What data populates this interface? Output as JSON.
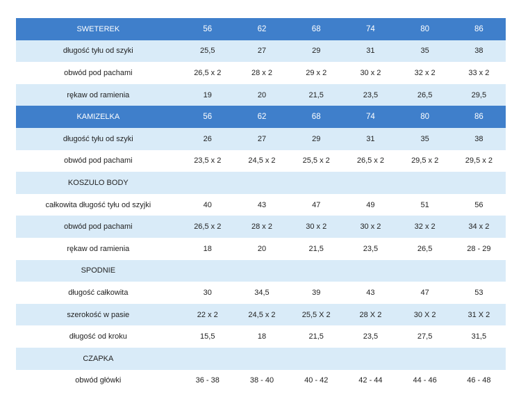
{
  "table": {
    "rows": [
      {
        "kind": "header",
        "label": "SWETEREK",
        "values": [
          "56",
          "62",
          "68",
          "74",
          "80",
          "86"
        ]
      },
      {
        "kind": "light",
        "label": "długość tyłu od szyki",
        "values": [
          "25,5",
          "27",
          "29",
          "31",
          "35",
          "38"
        ]
      },
      {
        "kind": "white",
        "label": "obwód pod pachami",
        "values": [
          "26,5 x 2",
          "28 x 2",
          "29 x 2",
          "30 x 2",
          "32 x 2",
          "33 x 2"
        ]
      },
      {
        "kind": "light",
        "label": "rękaw od ramienia",
        "values": [
          "19",
          "20",
          "21,5",
          "23,5",
          "26,5",
          "29,5"
        ]
      },
      {
        "kind": "header",
        "label": "KAMIZELKA",
        "values": [
          "56",
          "62",
          "68",
          "74",
          "80",
          "86"
        ]
      },
      {
        "kind": "light",
        "label": "długość tyłu od szyki",
        "values": [
          "26",
          "27",
          "29",
          "31",
          "35",
          "38"
        ]
      },
      {
        "kind": "white",
        "label": "obwód pod pachami",
        "values": [
          "23,5 x 2",
          "24,5 x 2",
          "25,5 x 2",
          "26,5 x 2",
          "29,5 x 2",
          "29,5 x 2"
        ]
      },
      {
        "kind": "light",
        "label": "KOSZULO BODY",
        "values": [
          "",
          "",
          "",
          "",
          "",
          ""
        ]
      },
      {
        "kind": "white",
        "label": "całkowita długość tyłu od szyjki",
        "values": [
          "40",
          "43",
          "47",
          "49",
          "51",
          "56"
        ]
      },
      {
        "kind": "light",
        "label": "obwód pod pachami",
        "values": [
          "26,5 x 2",
          "28 x 2",
          "30 x 2",
          "30 x 2",
          "32 x 2",
          "34 x 2"
        ]
      },
      {
        "kind": "white",
        "label": "rękaw od ramienia",
        "values": [
          "18",
          "20",
          "21,5",
          "23,5",
          "26,5",
          "28 - 29"
        ]
      },
      {
        "kind": "light",
        "label": "SPODNIE",
        "values": [
          "",
          "",
          "",
          "",
          "",
          ""
        ]
      },
      {
        "kind": "white",
        "label": "długość całkowita",
        "values": [
          "30",
          "34,5",
          "39",
          "43",
          "47",
          "53"
        ]
      },
      {
        "kind": "light",
        "label": "szerokość w pasie",
        "values": [
          "22 x 2",
          "24,5 x 2",
          "25,5 X 2",
          "28 X 2",
          "30 X 2",
          "31 X 2"
        ]
      },
      {
        "kind": "white",
        "label": "długość od kroku",
        "values": [
          "15,5",
          "18",
          "21,5",
          "23,5",
          "27,5",
          "31,5"
        ]
      },
      {
        "kind": "light",
        "label": "CZAPKA",
        "values": [
          "",
          "",
          "",
          "",
          "",
          ""
        ]
      },
      {
        "kind": "white",
        "label": "obwód główki",
        "values": [
          "36 - 38",
          "38 - 40",
          "40 - 42",
          "42 - 44",
          "44 - 46",
          "46 - 48"
        ]
      }
    ]
  },
  "colors": {
    "header_bg": "#3f7fcb",
    "header_text": "#ffffff",
    "light_row_bg": "#d9ebf8",
    "white_row_bg": "#ffffff",
    "body_text": "#222222"
  }
}
